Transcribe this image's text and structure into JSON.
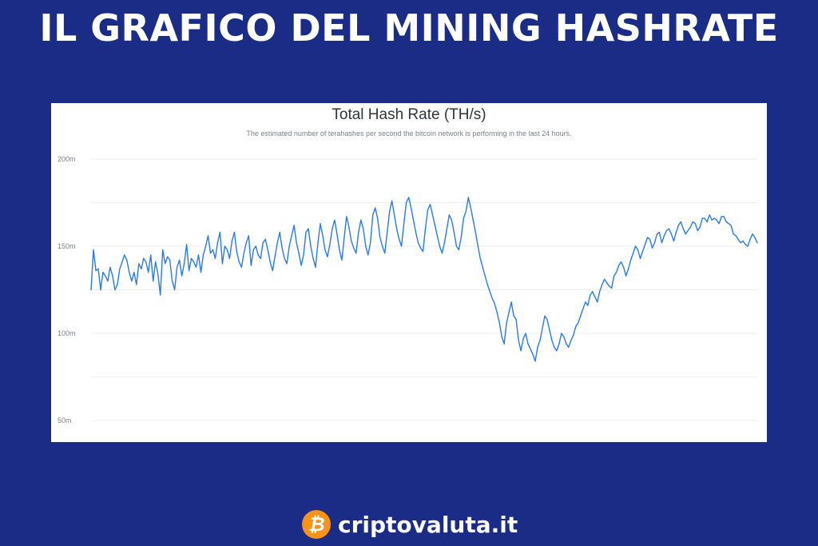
{
  "headline": "IL GRAFICO DEL MINING HASHRATE",
  "brand": {
    "logo_glyph": "₿",
    "name": "criptovaluta.it"
  },
  "colors": {
    "background": "#1b2c86",
    "line": "#2a7ae2",
    "gridline": "#eceef2"
  },
  "chart_data": {
    "type": "line",
    "title": "Total Hash Rate (TH/s)",
    "subtitle": "The estimated number of terahashes per second the bitcoin network is performing in the last 24 hours.",
    "xlabel": "",
    "ylabel": "",
    "ylim": [
      40,
      205
    ],
    "yticks": [
      50,
      100,
      150,
      200
    ],
    "ytick_labels": [
      "50m",
      "100m",
      "150m",
      "200m"
    ],
    "grid": true,
    "series": [
      {
        "values": [
          125,
          148,
          136,
          137,
          125,
          135,
          133,
          130,
          138,
          133,
          125,
          128,
          137,
          141,
          145,
          142,
          135,
          130,
          135,
          128,
          140,
          137,
          143,
          141,
          135,
          145,
          130,
          141,
          134,
          122,
          148,
          140,
          144,
          142,
          130,
          125,
          138,
          142,
          133,
          140,
          151,
          136,
          143,
          141,
          138,
          145,
          135,
          145,
          150,
          156,
          146,
          148,
          143,
          152,
          158,
          140,
          150,
          148,
          143,
          153,
          158,
          147,
          141,
          138,
          146,
          152,
          156,
          139,
          148,
          150,
          145,
          143,
          152,
          154,
          148,
          141,
          136,
          144,
          152,
          158,
          149,
          143,
          140,
          150,
          156,
          162,
          152,
          146,
          139,
          145,
          158,
          160,
          150,
          143,
          138,
          152,
          163,
          156,
          148,
          144,
          151,
          160,
          165,
          157,
          148,
          142,
          155,
          167,
          161,
          153,
          149,
          146,
          158,
          165,
          160,
          150,
          145,
          152,
          168,
          172,
          166,
          155,
          150,
          146,
          158,
          170,
          176,
          168,
          160,
          154,
          150,
          163,
          175,
          178,
          172,
          165,
          158,
          152,
          149,
          147,
          160,
          171,
          174,
          168,
          162,
          156,
          150,
          146,
          152,
          160,
          168,
          165,
          158,
          150,
          148,
          155,
          166,
          170,
          178,
          172,
          165,
          158,
          150,
          143,
          138,
          133,
          128,
          124,
          120,
          117,
          112,
          106,
          98,
          94,
          106,
          112,
          118,
          110,
          108,
          96,
          90,
          97,
          100,
          94,
          91,
          88,
          84,
          92,
          96,
          103,
          110,
          108,
          102,
          96,
          92,
          90,
          94,
          100,
          98,
          94,
          92,
          96,
          99,
          104,
          106,
          110,
          114,
          118,
          116,
          122,
          124,
          121,
          118,
          124,
          128,
          131,
          129,
          127,
          126,
          133,
          135,
          139,
          141,
          138,
          133,
          137,
          142,
          146,
          150,
          148,
          143,
          147,
          151,
          155,
          154,
          149,
          152,
          157,
          158,
          152,
          156,
          159,
          160,
          157,
          153,
          158,
          162,
          164,
          160,
          157,
          159,
          161,
          164,
          163,
          159,
          161,
          166,
          166,
          164,
          168,
          165,
          166,
          165,
          163,
          167,
          167,
          164,
          163,
          162,
          157,
          156,
          154,
          152,
          153,
          151,
          150,
          154,
          157,
          155,
          152
        ]
      }
    ]
  }
}
